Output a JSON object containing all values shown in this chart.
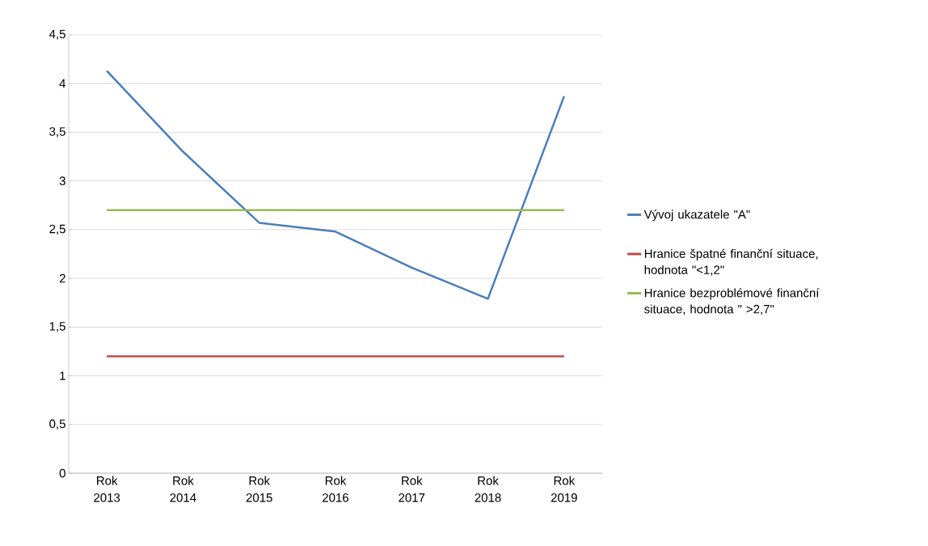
{
  "chart_data": {
    "type": "line",
    "categories": [
      "Rok 2013",
      "Rok 2014",
      "Rok 2015",
      "Rok 2016",
      "Rok 2017",
      "Rok 2018",
      "Rok 2019"
    ],
    "series": [
      {
        "name": "Vývoj ukazatele  \"A\"",
        "color": "#4a7ebb",
        "values": [
          4.13,
          3.3,
          2.57,
          2.48,
          2.11,
          1.79,
          3.87
        ]
      },
      {
        "name": "Hranice špatné finanční situace, hodnota \"<1,2\"",
        "color": "#be4b48",
        "values": [
          1.2,
          1.2,
          1.2,
          1.2,
          1.2,
          1.2,
          1.2
        ]
      },
      {
        "name": "Hranice bezproblémové finanční situace, hodnota \" >2,7\"",
        "color": "#98b954",
        "values": [
          2.7,
          2.7,
          2.7,
          2.7,
          2.7,
          2.7,
          2.7
        ]
      }
    ],
    "ylim": [
      0,
      4.5
    ],
    "yticks": [
      {
        "value": 0,
        "label": "0"
      },
      {
        "value": 0.5,
        "label": "0,5"
      },
      {
        "value": 1,
        "label": "1"
      },
      {
        "value": 1.5,
        "label": "1,5"
      },
      {
        "value": 2,
        "label": "2"
      },
      {
        "value": 2.5,
        "label": "2,5"
      },
      {
        "value": 3,
        "label": "3"
      },
      {
        "value": 3.5,
        "label": "3,5"
      },
      {
        "value": 4,
        "label": "4"
      },
      {
        "value": 4.5,
        "label": "4,5"
      }
    ],
    "grid": "y",
    "legend": "right",
    "marker": "none",
    "line_style": "solid"
  }
}
